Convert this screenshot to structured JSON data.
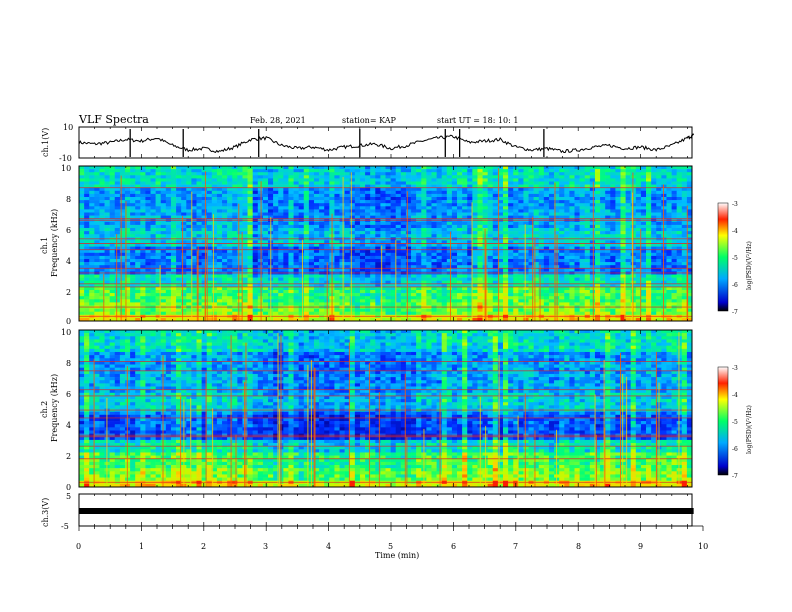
{
  "header": {
    "title": "VLF Spectra",
    "date": "Feb. 28, 2021",
    "station": "station= KAP",
    "start": "start  UT =   18: 10: 1"
  },
  "chart_data": [
    {
      "type": "line",
      "ylabel": "ch.1(V)",
      "ylim": [
        -10,
        10
      ],
      "yticks": [
        "10",
        "-10"
      ],
      "xlim": [
        0,
        10
      ],
      "series": [
        {
          "x": [
            0,
            0.25,
            0.5,
            0.75,
            1,
            1.25,
            1.5,
            1.75,
            2,
            2.25,
            2.5,
            2.75,
            3,
            3.25,
            3.5,
            3.75,
            4,
            4.25,
            4.5,
            4.75,
            5,
            5.25,
            5.5,
            5.75,
            6,
            6.25,
            6.5,
            6.75,
            7,
            7.25,
            7.5,
            7.75,
            8,
            8.25,
            8.5,
            8.75,
            9,
            9.25,
            9.5,
            9.75,
            9.85
          ],
          "y": [
            0,
            -1,
            0,
            2,
            1,
            3,
            -2,
            -5,
            -4,
            -6,
            -3,
            2,
            3,
            -2,
            -4,
            -3,
            -5,
            -3,
            -2,
            -1,
            -4,
            -2,
            1,
            3,
            4,
            0,
            1,
            2,
            -3,
            -5,
            -4,
            -6,
            -5,
            -3,
            -2,
            -4,
            -3,
            -5,
            -2,
            3,
            5
          ]
        }
      ]
    },
    {
      "type": "heatmap",
      "ylabel": "ch.1",
      "ylabel2": "Frequency  (kHz)",
      "ylim": [
        0,
        10
      ],
      "xlim": [
        0,
        10
      ],
      "yticks": [
        "0",
        "2",
        "4",
        "6",
        "8",
        "10"
      ],
      "colorbar": {
        "label": "log(PSD)(V²/Hz)",
        "range": [
          -7,
          -3
        ],
        "ticks": [
          "-3",
          "-4",
          "-5",
          "-6",
          "-7"
        ]
      }
    },
    {
      "type": "heatmap",
      "ylabel": "ch.2",
      "ylabel2": "Frequency  (kHz)",
      "ylim": [
        0,
        10
      ],
      "xlim": [
        0,
        10
      ],
      "yticks": [
        "0",
        "2",
        "4",
        "6",
        "8",
        "10"
      ],
      "colorbar": {
        "label": "log(PSD)(V²/Hz)",
        "range": [
          -7,
          -3
        ],
        "ticks": [
          "-3",
          "-4",
          "-5",
          "-6",
          "-7"
        ]
      }
    },
    {
      "type": "line",
      "ylabel": "ch.3(V)",
      "ylim": [
        -5,
        5
      ],
      "yticks": [
        "5",
        "-5"
      ],
      "xlim": [
        0,
        10
      ],
      "series": [
        {
          "x": [
            0,
            9.85
          ],
          "y": [
            0,
            0
          ]
        }
      ]
    }
  ],
  "xaxis": {
    "label": "Time  (min)",
    "ticks": [
      "0",
      "1",
      "2",
      "3",
      "4",
      "5",
      "6",
      "7",
      "8",
      "9",
      "10"
    ]
  }
}
